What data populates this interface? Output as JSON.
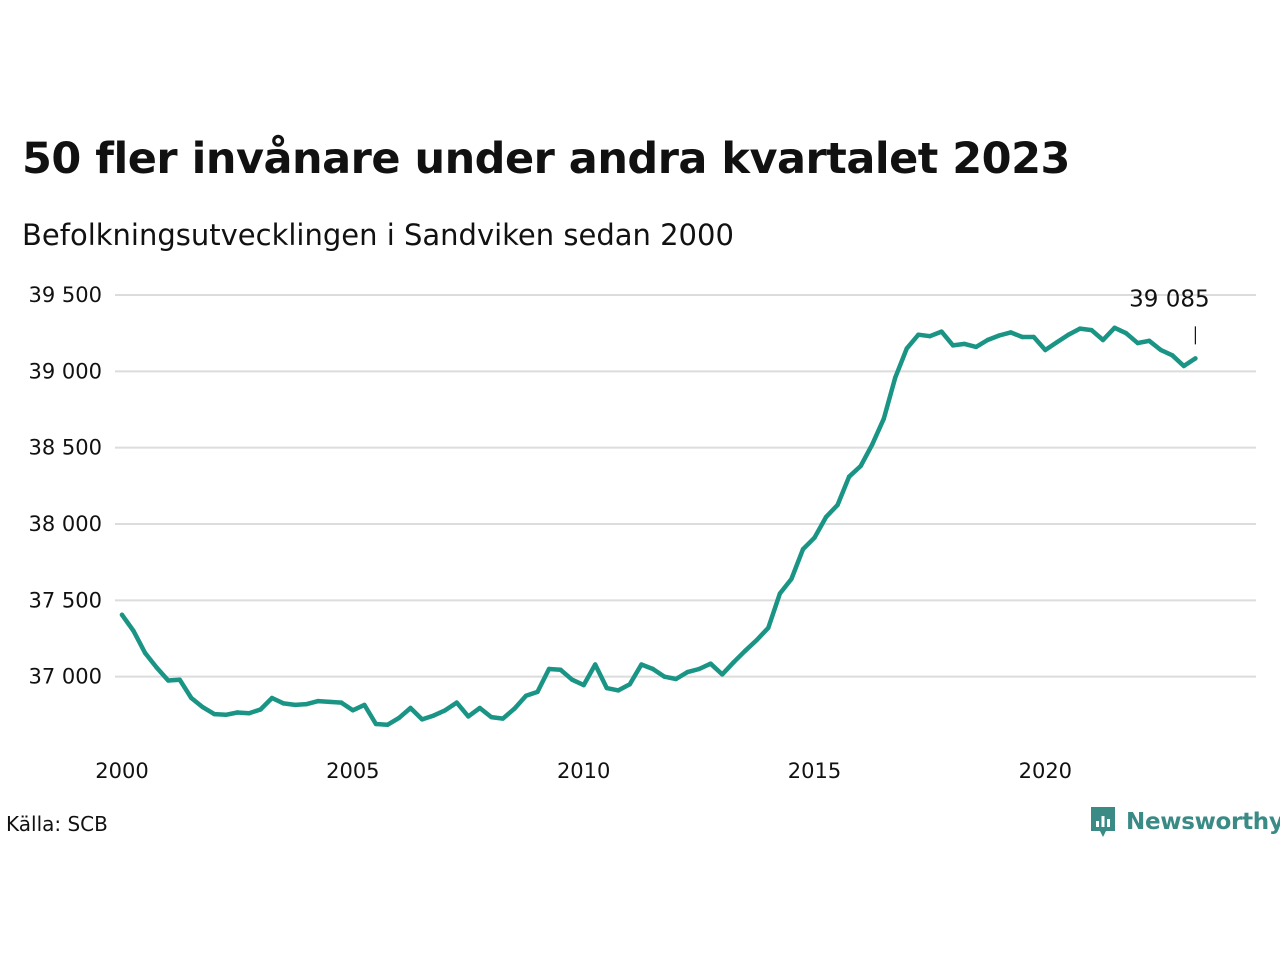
{
  "title": "50 fler invånare under andra kvartalet 2023",
  "subtitle": "Befolkningsutvecklingen i Sandviken sedan 2000",
  "source": "Källa: SCB",
  "brand": {
    "name": "Newsworthy",
    "icon": "newsworthy-logo-icon",
    "color": "#3a8a86"
  },
  "colors": {
    "line": "#1a9484",
    "grid": "#dcdcdc"
  },
  "chart_data": {
    "type": "line",
    "title": "50 fler invånare under andra kvartalet 2023",
    "subtitle": "Befolkningsutvecklingen i Sandviken sedan 2000",
    "xlabel": "",
    "ylabel": "",
    "xlim": [
      2000,
      2024
    ],
    "ylim": [
      36500,
      39500
    ],
    "grid": true,
    "legend": "none",
    "x_ticks": [
      {
        "value": 2000,
        "label": "2000"
      },
      {
        "value": 2005,
        "label": "2005"
      },
      {
        "value": 2010,
        "label": "2010"
      },
      {
        "value": 2015,
        "label": "2015"
      },
      {
        "value": 2020,
        "label": "2020"
      }
    ],
    "y_ticks": [
      {
        "value": 37000,
        "label": "37 000"
      },
      {
        "value": 37500,
        "label": "37 500"
      },
      {
        "value": 38000,
        "label": "38 000"
      },
      {
        "value": 38500,
        "label": "38 500"
      },
      {
        "value": 39000,
        "label": "39 000"
      },
      {
        "value": 39500,
        "label": "39 500"
      }
    ],
    "end_label": "39 085",
    "series": [
      {
        "x": [
          2000.0,
          2000.25,
          2000.5,
          2000.75,
          2001.0,
          2001.25,
          2001.5,
          2001.75,
          2002.0,
          2002.25,
          2002.5,
          2002.75,
          2003.0,
          2003.25,
          2003.5,
          2003.75,
          2004.0,
          2004.25,
          2004.5,
          2004.75,
          2005.0,
          2005.25,
          2005.5,
          2005.75,
          2006.0,
          2006.25,
          2006.5,
          2006.75,
          2007.0,
          2007.25,
          2007.5,
          2007.75,
          2008.0,
          2008.25,
          2008.5,
          2008.75,
          2009.0,
          2009.25,
          2009.5,
          2009.75,
          2010.0,
          2010.25,
          2010.5,
          2010.75,
          2011.0,
          2011.25,
          2011.5,
          2011.75,
          2012.0,
          2012.25,
          2012.5,
          2012.75,
          2013.0,
          2013.25,
          2013.5,
          2013.75,
          2014.0,
          2014.25,
          2014.5,
          2014.75,
          2015.0,
          2015.25,
          2015.5,
          2015.75,
          2016.0,
          2016.25,
          2016.5,
          2016.75,
          2017.0,
          2017.25,
          2017.5,
          2017.75,
          2018.0,
          2018.25,
          2018.5,
          2018.75,
          2019.0,
          2019.25,
          2019.5,
          2019.75,
          2020.0,
          2020.25,
          2020.5,
          2020.75,
          2021.0,
          2021.25,
          2021.5,
          2021.75,
          2022.0,
          2022.25,
          2022.5,
          2022.75,
          2023.0,
          2023.25
        ],
        "values": [
          37405,
          37300,
          37155,
          37060,
          36975,
          36980,
          36860,
          36800,
          36755,
          36750,
          36765,
          36760,
          36785,
          36860,
          36825,
          36815,
          36820,
          36840,
          36835,
          36830,
          36780,
          36815,
          36690,
          36685,
          36730,
          36795,
          36720,
          36745,
          36780,
          36830,
          36740,
          36795,
          36735,
          36725,
          36790,
          36875,
          36900,
          37050,
          37045,
          36980,
          36945,
          37080,
          36925,
          36910,
          36950,
          37080,
          37050,
          37000,
          36985,
          37030,
          37050,
          37085,
          37015,
          37095,
          37170,
          37240,
          37320,
          37545,
          37640,
          37835,
          37910,
          38045,
          38125,
          38310,
          38380,
          38520,
          38690,
          38960,
          39150,
          39240,
          39230,
          39260,
          39170,
          39180,
          39160,
          39205,
          39235,
          39255,
          39225,
          39225,
          39140,
          39190,
          39240,
          39280,
          39270,
          39205,
          39285,
          39250,
          39185,
          39200,
          39140,
          39105,
          39035,
          39085
        ]
      }
    ]
  }
}
